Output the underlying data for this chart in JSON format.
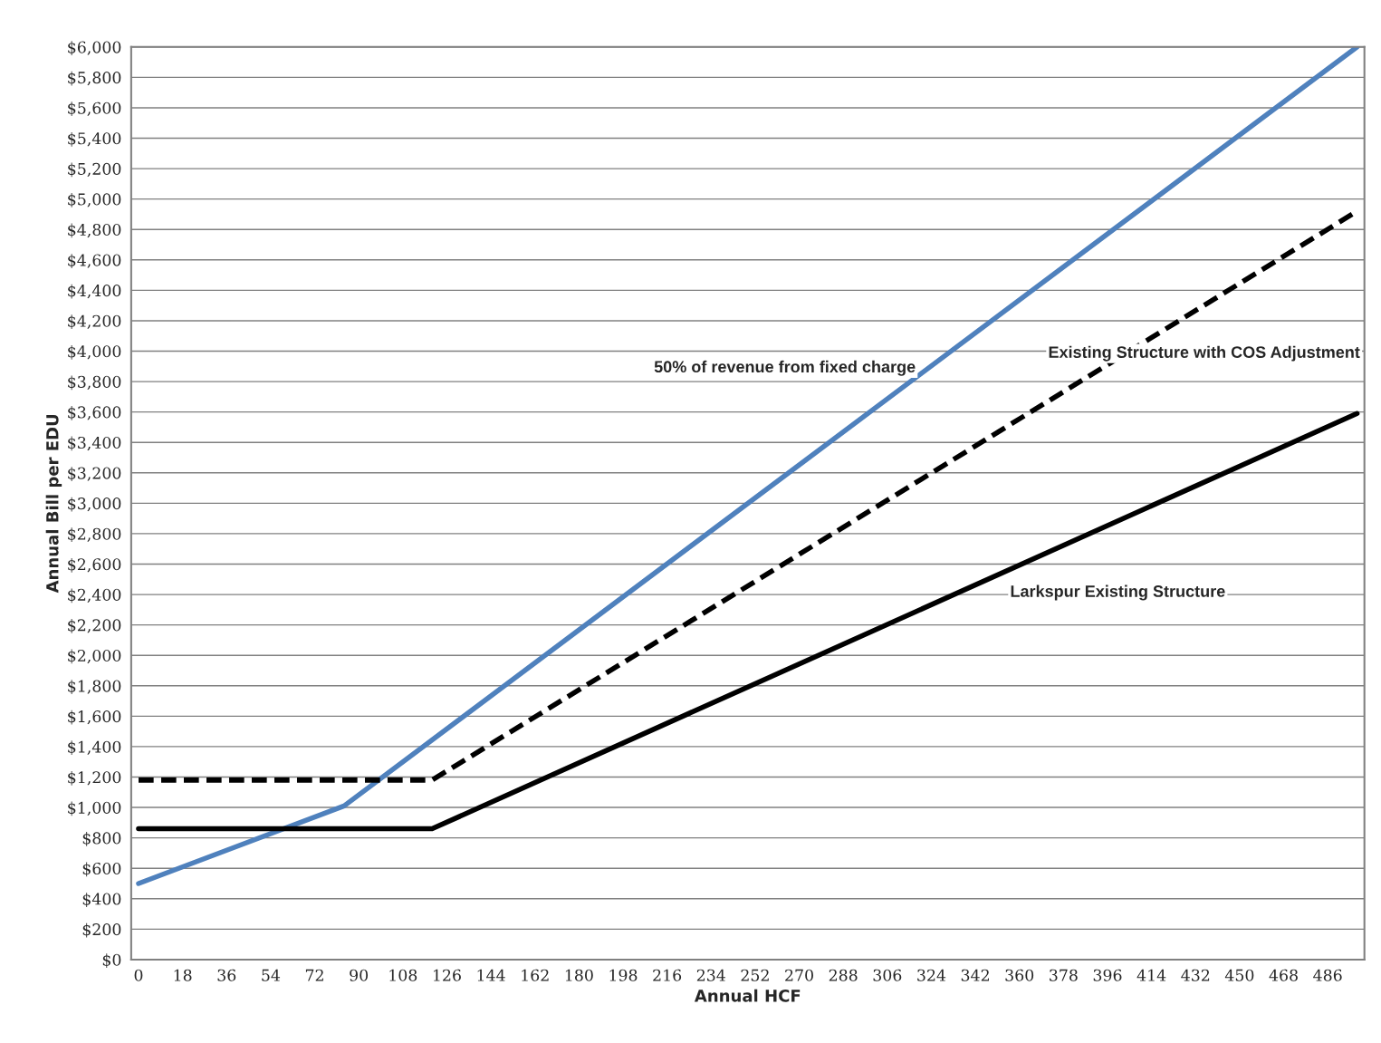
{
  "chart_data": {
    "type": "line",
    "xlabel": "Annual HCF",
    "ylabel": "Annual Bill per EDU",
    "xlim": [
      -3,
      501
    ],
    "xticks": [
      0,
      18,
      36,
      54,
      72,
      90,
      108,
      126,
      144,
      162,
      180,
      198,
      216,
      234,
      252,
      270,
      288,
      306,
      324,
      342,
      360,
      378,
      396,
      414,
      432,
      450,
      468,
      486
    ],
    "ylim": [
      0,
      6000
    ],
    "yticks": [
      {
        "value": 0,
        "label": "$0"
      },
      {
        "value": 200,
        "label": "$200"
      },
      {
        "value": 400,
        "label": "$400"
      },
      {
        "value": 600,
        "label": "$600"
      },
      {
        "value": 800,
        "label": "$800"
      },
      {
        "value": 1000,
        "label": "$1,000"
      },
      {
        "value": 1200,
        "label": "$1,200"
      },
      {
        "value": 1400,
        "label": "$1,400"
      },
      {
        "value": 1600,
        "label": "$1,600"
      },
      {
        "value": 1800,
        "label": "$1,800"
      },
      {
        "value": 2000,
        "label": "$2,000"
      },
      {
        "value": 2200,
        "label": "$2,200"
      },
      {
        "value": 2400,
        "label": "$2,400"
      },
      {
        "value": 2600,
        "label": "$2,600"
      },
      {
        "value": 2800,
        "label": "$2,800"
      },
      {
        "value": 3000,
        "label": "$3,000"
      },
      {
        "value": 3200,
        "label": "$3,200"
      },
      {
        "value": 3400,
        "label": "$3,400"
      },
      {
        "value": 3600,
        "label": "$3,600"
      },
      {
        "value": 3800,
        "label": "$3,800"
      },
      {
        "value": 4000,
        "label": "$4,000"
      },
      {
        "value": 4200,
        "label": "$4,200"
      },
      {
        "value": 4400,
        "label": "$4,400"
      },
      {
        "value": 4600,
        "label": "$4,600"
      },
      {
        "value": 4800,
        "label": "$4,800"
      },
      {
        "value": 5000,
        "label": "$5,000"
      },
      {
        "value": 5200,
        "label": "$5,200"
      },
      {
        "value": 5400,
        "label": "$5,400"
      },
      {
        "value": 5600,
        "label": "$5,600"
      },
      {
        "value": 5800,
        "label": "$5,800"
      },
      {
        "value": 6000,
        "label": "$6,000"
      }
    ],
    "grid": "y",
    "series": [
      {
        "color": "#4f81bd",
        "line_style": "solid",
        "x": [
          0,
          84,
          498
        ],
        "values": [
          500,
          1010,
          6000
        ]
      },
      {
        "color": "#000000",
        "line_style": "dashed",
        "x": [
          0,
          120,
          498
        ],
        "values": [
          1180,
          1180,
          4920
        ]
      },
      {
        "color": "#000000",
        "line_style": "solid",
        "x": [
          0,
          120,
          498
        ],
        "values": [
          860,
          860,
          3590
        ]
      }
    ],
    "annotations": [
      "50% of revenue from fixed charge",
      "Existing Structure with COS Adjustment",
      "Larkspur Existing Structure"
    ]
  }
}
